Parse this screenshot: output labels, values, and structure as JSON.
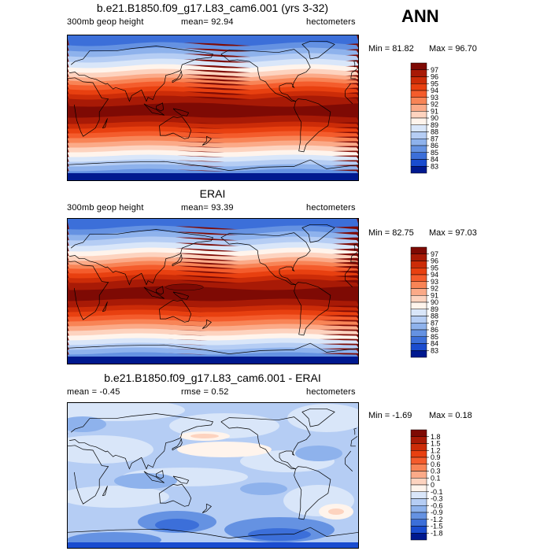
{
  "season": "ANN",
  "colors": {
    "coast": "#000000",
    "frame": "#000000"
  },
  "panels": [
    {
      "title": "b.e21.B1850.f09_g17.L83_cam6.001 (yrs 3-32)",
      "left_label": "300mb geop height",
      "center_label": "mean=  92.94",
      "right_label": "hectometers",
      "min_label": "Min =  81.82",
      "max_label": "Max =  96.70",
      "kind": "field"
    },
    {
      "title": "ERAI",
      "left_label": "300mb geop height",
      "center_label": "mean=  93.39",
      "right_label": "hectometers",
      "min_label": "Min =  82.75",
      "max_label": "Max =  97.03",
      "kind": "field"
    },
    {
      "title": "b.e21.B1850.f09_g17.L83_cam6.001 - ERAI",
      "left_label": "mean =  -0.45",
      "center_label": "rmse =   0.52",
      "right_label": "hectometers",
      "min_label": "Min =  -1.69",
      "max_label": "Max =   0.18",
      "kind": "diff"
    }
  ],
  "chart_data": [
    {
      "type": "heatmap",
      "title": "b.e21.B1850.f09_g17.L83_cam6.001 (yrs 3-32)",
      "variable": "300mb geop height",
      "units": "hectometers",
      "mean": 92.94,
      "min": 81.82,
      "max": 96.7,
      "colorbar_levels": [
        "97",
        "96",
        "95",
        "94",
        "93",
        "92",
        "91",
        "90",
        "89",
        "88",
        "87",
        "86",
        "85",
        "84",
        "83"
      ],
      "colorbar_colors": [
        "#7e0a04",
        "#a81a06",
        "#cc2c08",
        "#e84010",
        "#f45c2c",
        "#f88456",
        "#fbaa88",
        "#fdd3bf",
        "#fff4ec",
        "#d9e6f9",
        "#b5cdf4",
        "#8eb2ec",
        "#6592e2",
        "#3c6fd9",
        "#1a4ccf",
        "#00198f"
      ]
    },
    {
      "type": "heatmap",
      "title": "ERAI",
      "variable": "300mb geop height",
      "units": "hectometers",
      "mean": 93.39,
      "min": 82.75,
      "max": 97.03,
      "colorbar_levels": [
        "97",
        "96",
        "95",
        "94",
        "93",
        "92",
        "91",
        "90",
        "89",
        "88",
        "87",
        "86",
        "85",
        "84",
        "83"
      ],
      "colorbar_colors": [
        "#7e0a04",
        "#a81a06",
        "#cc2c08",
        "#e84010",
        "#f45c2c",
        "#f88456",
        "#fbaa88",
        "#fdd3bf",
        "#fff4ec",
        "#d9e6f9",
        "#b5cdf4",
        "#8eb2ec",
        "#6592e2",
        "#3c6fd9",
        "#1a4ccf",
        "#00198f"
      ]
    },
    {
      "type": "heatmap",
      "title": "b.e21.B1850.f09_g17.L83_cam6.001 - ERAI",
      "units": "hectometers",
      "mean": -0.45,
      "rmse": 0.52,
      "min": -1.69,
      "max": 0.18,
      "colorbar_levels": [
        "1.8",
        "1.5",
        "1.2",
        "0.9",
        "0.6",
        "0.3",
        "0.1",
        "0",
        "-0.1",
        "-0.3",
        "-0.6",
        "-0.9",
        "-1.2",
        "-1.5",
        "-1.8"
      ],
      "colorbar_colors": [
        "#7e0a04",
        "#a81a06",
        "#cc2c08",
        "#e84010",
        "#f45c2c",
        "#f88456",
        "#fbaa88",
        "#fdd3bf",
        "#fff4ec",
        "#d9e6f9",
        "#b5cdf4",
        "#8eb2ec",
        "#6592e2",
        "#3c6fd9",
        "#1a4ccf",
        "#00198f"
      ]
    }
  ]
}
